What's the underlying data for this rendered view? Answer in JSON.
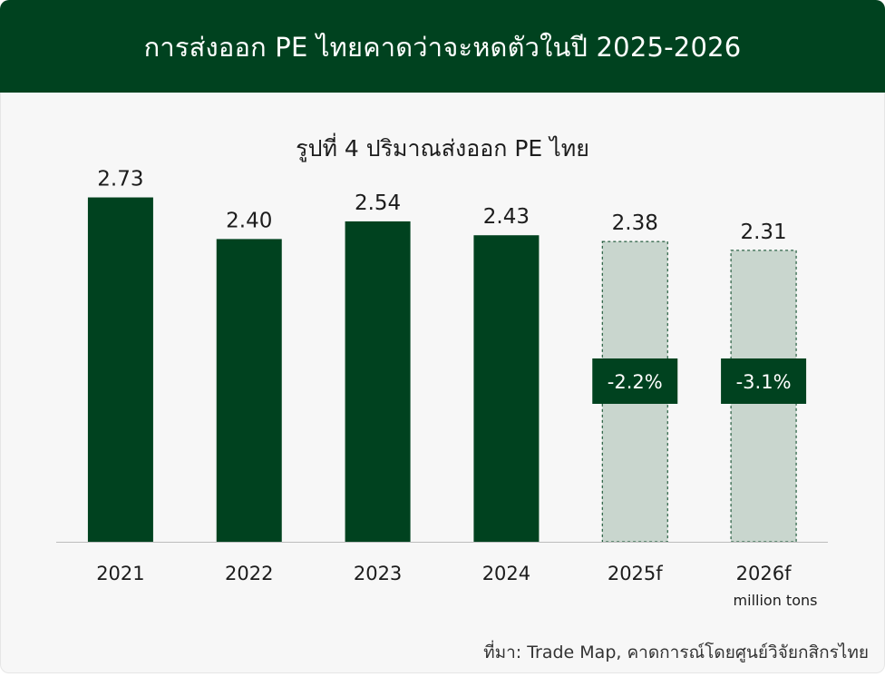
{
  "header": {
    "title": "การส่งออก PE ไทยคาดว่าจะหดตัวในปี 2025-2026"
  },
  "chart_data": {
    "type": "bar",
    "title": "รูปที่ 4 ปริมาณส่งออก PE ไทย",
    "categories": [
      "2021",
      "2022",
      "2023",
      "2024",
      "2025f",
      "2026f"
    ],
    "values": [
      2.73,
      2.4,
      2.54,
      2.43,
      2.38,
      2.31
    ],
    "value_labels": [
      "2.73",
      "2.40",
      "2.54",
      "2.43",
      "2.38",
      "2.31"
    ],
    "forecast": [
      false,
      false,
      false,
      false,
      true,
      true
    ],
    "change_labels": [
      "",
      "",
      "",
      "",
      "-2.2%",
      "-3.1%"
    ],
    "unit": "million tons",
    "ylim": [
      0,
      3.0
    ],
    "grid": false,
    "colors": {
      "actual": "#00421f",
      "forecast_fill": "#c9d6ce",
      "forecast_border": "#00421f",
      "badge": "#00421f"
    }
  },
  "source": "ที่มา: Trade Map, คาดการณ์โดยศูนย์วิจัยกสิกรไทย"
}
